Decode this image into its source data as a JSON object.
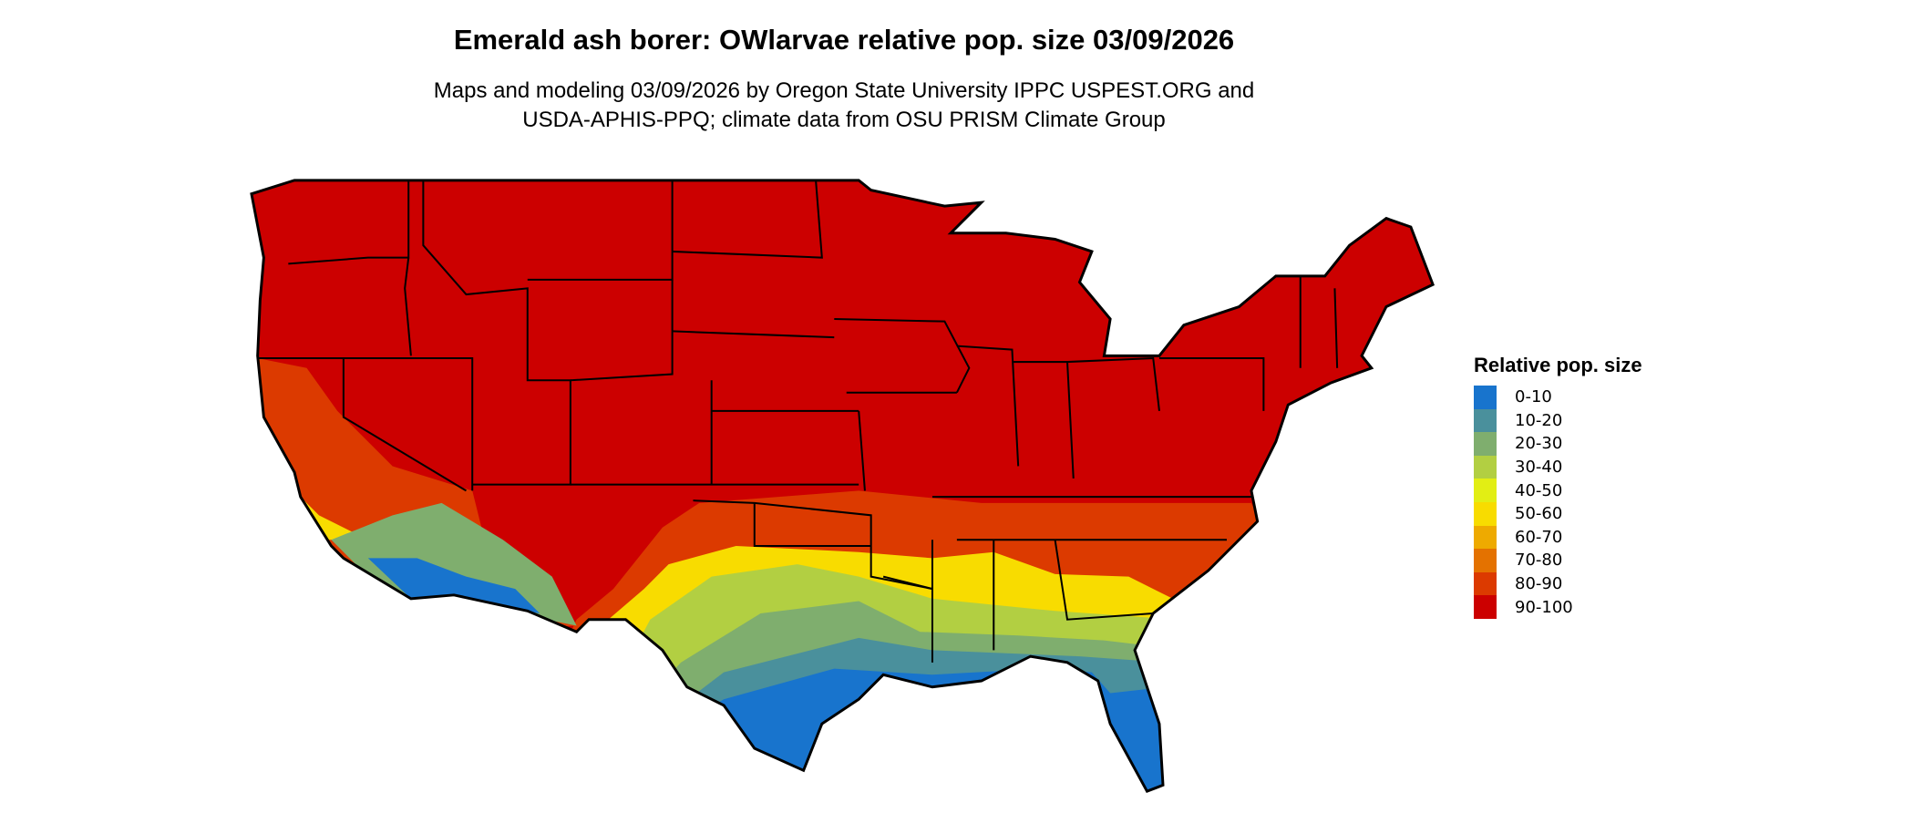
{
  "title": "Emerald ash borer: OWlarvae relative pop. size 03/09/2026",
  "subtitle_line1": "Maps and modeling 03/09/2026 by Oregon State University IPPC USPEST.ORG and",
  "subtitle_line2": "USDA-APHIS-PPQ; climate data from OSU PRISM Climate Group",
  "legend": {
    "title": "Relative pop. size",
    "items": [
      {
        "label": "0-10",
        "color": "#1874CD"
      },
      {
        "label": "10-20",
        "color": "#4A909C"
      },
      {
        "label": "20-30",
        "color": "#7FAE6E"
      },
      {
        "label": "30-40",
        "color": "#B2CF42"
      },
      {
        "label": "40-50",
        "color": "#E2EE14"
      },
      {
        "label": "50-60",
        "color": "#F8DC00"
      },
      {
        "label": "60-70",
        "color": "#EEAA00"
      },
      {
        "label": "70-80",
        "color": "#E47200"
      },
      {
        "label": "80-90",
        "color": "#DC3A00"
      },
      {
        "label": "90-100",
        "color": "#CC0000"
      }
    ]
  }
}
